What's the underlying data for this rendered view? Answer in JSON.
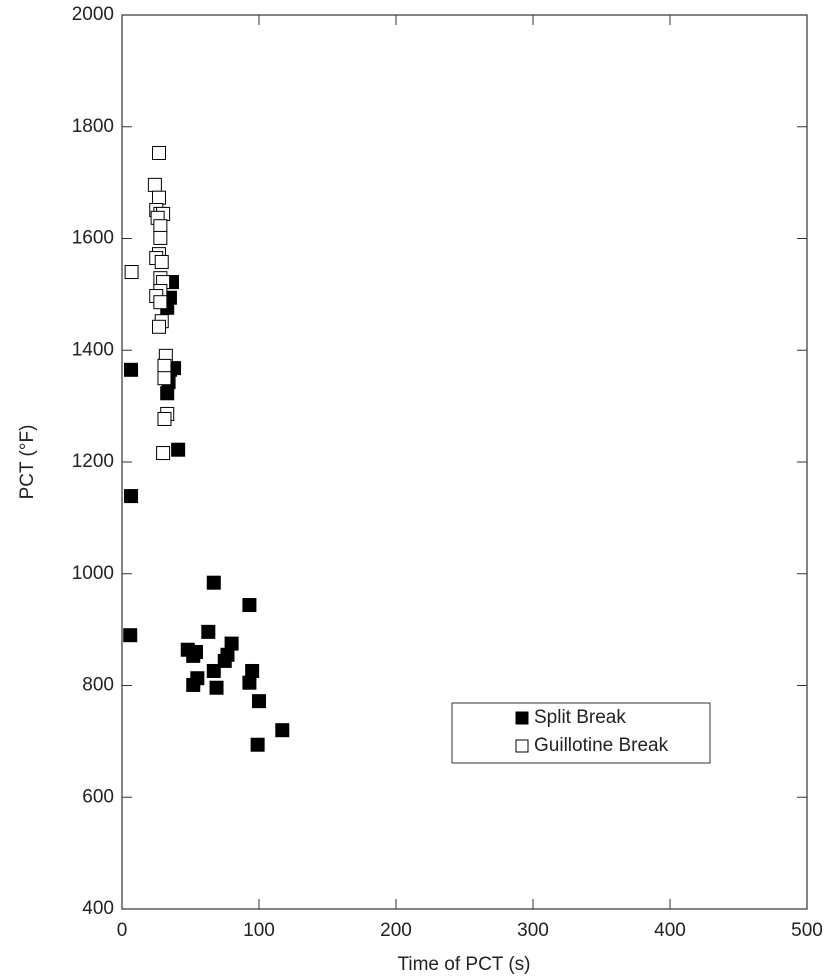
{
  "chart_data": {
    "type": "scatter",
    "xlabel": "Time of PCT (s)",
    "ylabel": "PCT (°F)",
    "xlim": [
      0,
      500
    ],
    "xticks": [
      0,
      100,
      200,
      300,
      400,
      500
    ],
    "ylim": [
      400,
      2000
    ],
    "yticks": [
      400,
      600,
      800,
      1000,
      1200,
      1400,
      1600,
      1800,
      2000
    ],
    "legend": "lower right",
    "series": [
      {
        "name": "Split Break",
        "color": "#000000",
        "marker": "filled-square",
        "x": [
          6.6,
          6.6,
          6,
          36.5,
          35,
          33,
          38,
          35,
          34,
          33,
          41,
          67,
          93,
          63,
          48,
          54,
          52,
          80,
          77,
          75,
          55,
          52,
          67,
          69,
          95,
          93,
          100,
          99,
          117
        ],
        "values": [
          1365,
          1139,
          890,
          1522,
          1494,
          1476,
          1368,
          1365,
          1343,
          1323,
          1222,
          984,
          944,
          896,
          864,
          860,
          853,
          875,
          855,
          844,
          813,
          801,
          826,
          796,
          826,
          805,
          772,
          694,
          720
        ]
      },
      {
        "name": "Guillotine Break",
        "color": "#000000",
        "marker": "open-square",
        "x": [
          7,
          27,
          24,
          27,
          25,
          28,
          30,
          26,
          28,
          28,
          27,
          25,
          29,
          28,
          30,
          28,
          25,
          28,
          29,
          27,
          32,
          31,
          31,
          33,
          31,
          30
        ],
        "values": [
          1540,
          1753,
          1696,
          1673,
          1651,
          1644,
          1644,
          1637,
          1622,
          1601,
          1572,
          1565,
          1558,
          1529,
          1522,
          1506,
          1497,
          1486,
          1452,
          1442,
          1390,
          1372,
          1350,
          1286,
          1277,
          1216
        ]
      }
    ]
  }
}
